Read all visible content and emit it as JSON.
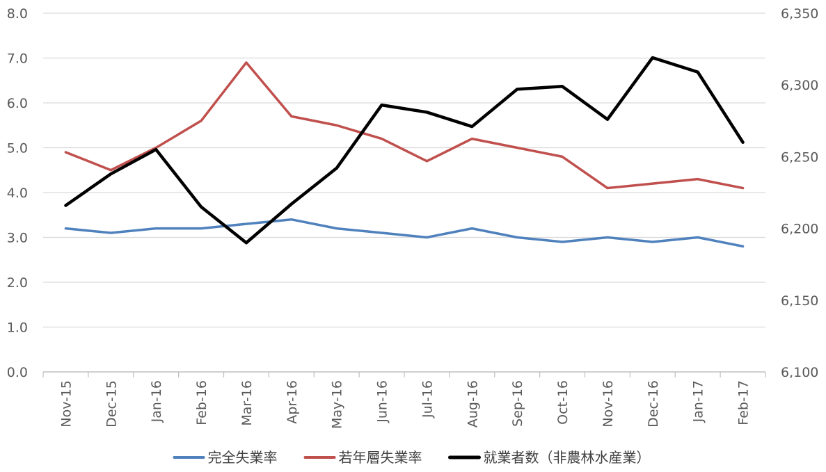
{
  "chart_data": {
    "type": "line",
    "categories": [
      "Nov-15",
      "Dec-15",
      "Jan-16",
      "Feb-16",
      "Mar-16",
      "Apr-16",
      "May-16",
      "Jun-16",
      "Jul-16",
      "Aug-16",
      "Sep-16",
      "Oct-16",
      "Nov-16",
      "Dec-16",
      "Jan-17",
      "Feb-17"
    ],
    "left_axis": {
      "ylim": [
        0,
        8
      ],
      "ticks": [
        "0.0",
        "1.0",
        "2.0",
        "3.0",
        "4.0",
        "5.0",
        "6.0",
        "7.0",
        "8.0"
      ],
      "tick_values": [
        0,
        1,
        2,
        3,
        4,
        5,
        6,
        7,
        8
      ]
    },
    "right_axis": {
      "ylim": [
        6100,
        6350
      ],
      "ticks": [
        "6,100",
        "6,150",
        "6,200",
        "6,250",
        "6,300",
        "6,350"
      ],
      "tick_values": [
        6100,
        6150,
        6200,
        6250,
        6300,
        6350
      ]
    },
    "grid": true,
    "legend_position": "bottom",
    "series": [
      {
        "name": "完全失業率",
        "axis": "left",
        "color": "#4F81BD",
        "values": [
          3.2,
          3.1,
          3.2,
          3.2,
          3.3,
          3.4,
          3.2,
          3.1,
          3.0,
          3.2,
          3.0,
          2.9,
          3.0,
          2.9,
          3.0,
          2.8
        ]
      },
      {
        "name": "若年層失業率",
        "axis": "left",
        "color": "#C0504D",
        "values": [
          4.9,
          4.5,
          5.0,
          5.6,
          6.9,
          5.7,
          5.5,
          5.2,
          4.7,
          5.2,
          5.0,
          4.8,
          4.1,
          4.2,
          4.3,
          4.1
        ]
      },
      {
        "name": "就業者数（非農林水産業）",
        "axis": "right",
        "color": "#000000",
        "values": [
          6216,
          6238,
          6255,
          6215,
          6190,
          6217,
          6242,
          6286,
          6281,
          6271,
          6297,
          6299,
          6276,
          6319,
          6309,
          6260
        ]
      }
    ]
  }
}
